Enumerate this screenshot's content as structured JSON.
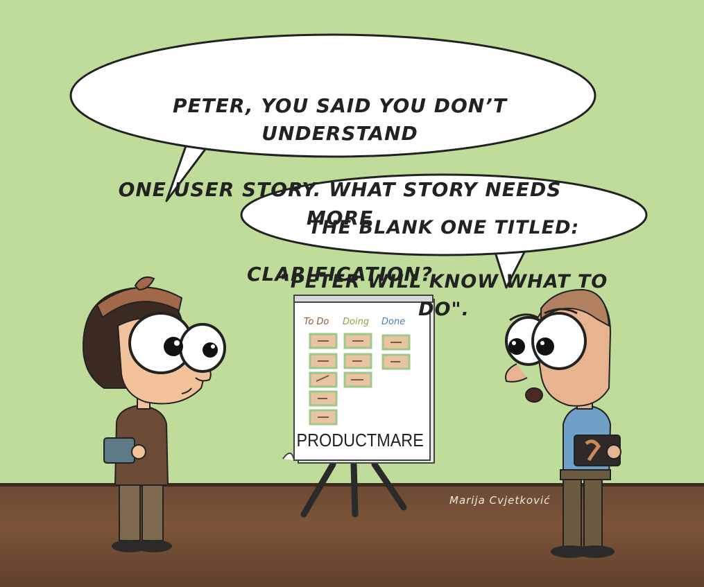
{
  "bubbles": {
    "left": {
      "lines": [
        "PETER, YOU SAID YOU DON’T UNDERSTAND",
        "ONE USER STORY. WHAT STORY NEEDS MORE",
        "CLARIFICATION?"
      ]
    },
    "right": {
      "lines": [
        "THE BLANK ONE TITLED:",
        "\"PETER WILL KNOW WHAT TO DO\"."
      ]
    }
  },
  "board": {
    "title": "PRODUCTMARE",
    "columns": [
      "To Do",
      "Doing",
      "Done"
    ]
  },
  "signature": "Marija Cvjetković",
  "colors": {
    "background": "#bfdc9a",
    "floor": "#6b4a33",
    "sticky": "#e9c4a0",
    "note_border": "#9cc98a",
    "todo_color": "#8a5a3c",
    "doing_color": "#8aa24a",
    "done_color": "#4f7fb0"
  },
  "characters": [
    "woman-scrum-master",
    "peter-developer"
  ]
}
